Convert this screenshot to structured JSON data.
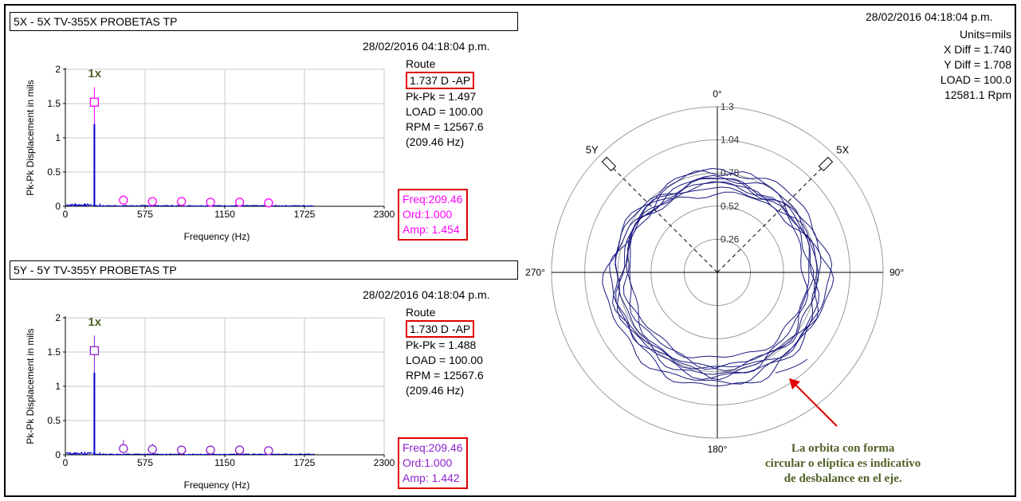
{
  "colors": {
    "spectrum_line": "#0000cc",
    "marker": "#ff00ff",
    "marker_dark": "#8c1fd0",
    "orbit": "#1a1a80",
    "annotation": "#4f6228",
    "highlight": "#e00000",
    "arrow": "#e00000"
  },
  "orbit": {
    "timestamp": "28/02/2016 04:18:04 p.m.",
    "info": [
      "Units=mils",
      "X Diff = 1.740",
      "Y Diff = 1.708",
      "LOAD = 100.0",
      "12581.1 Rpm"
    ],
    "angle_labels": {
      "top": "0°",
      "right": "90°",
      "bottom": "180°",
      "left": "270°"
    },
    "probe_labels": {
      "x": "5X",
      "y": "5Y"
    },
    "note": [
      "La orbita con forma",
      "circular o elíptica es indicativo",
      "de desbalance en el eje."
    ]
  },
  "chart_data": [
    {
      "type": "line",
      "title": "5X - 5X TV-355X PROBETAS TP",
      "timestamp": "28/02/2016 04:18:04 p.m.",
      "xlabel": "Frequency (Hz)",
      "ylabel": "Pk-Pk Displacement in mils",
      "xlim": [
        0,
        2300
      ],
      "ylim": [
        0,
        2
      ],
      "x_ticks": [
        "0",
        "575",
        "1150",
        "1725",
        "2300"
      ],
      "y_ticks": [
        "0",
        "0.5",
        "1",
        "1.5",
        "2"
      ],
      "grid": true,
      "peak_label": "1x",
      "peak": {
        "x": 209.46,
        "y": 1.2,
        "marker_y": 1.52
      },
      "harmonics": [
        {
          "x": 419,
          "y": 0.09,
          "whisker": 0.07
        },
        {
          "x": 628,
          "y": 0.07,
          "whisker": 0.06
        },
        {
          "x": 838,
          "y": 0.07,
          "whisker": 0.05
        },
        {
          "x": 1047,
          "y": 0.06,
          "whisker": 0.05
        },
        {
          "x": 1257,
          "y": 0.06,
          "whisker": 0.04
        },
        {
          "x": 1466,
          "y": 0.05,
          "whisker": 0.04
        }
      ],
      "info": {
        "route": "Route",
        "highlight": "1.737 D -AP",
        "lines": [
          "Pk-Pk = 1.497",
          "LOAD = 100.00",
          "RPM = 12567.6",
          "(209.46 Hz)"
        ]
      },
      "cursor": [
        "Freq:209.46",
        "Ord:1.000",
        "Amp: 1.454"
      ]
    },
    {
      "type": "line",
      "title": "5Y - 5Y TV-355Y PROBETAS TP",
      "timestamp": "28/02/2016 04:18:04 p.m.",
      "xlabel": "Frequency (Hz)",
      "ylabel": "Pk-Pk Displacement in mils",
      "xlim": [
        0,
        2300
      ],
      "ylim": [
        0,
        2
      ],
      "x_ticks": [
        "0",
        "575",
        "1150",
        "1725",
        "2300"
      ],
      "y_ticks": [
        "0",
        "0.5",
        "1",
        "1.5",
        "2"
      ],
      "grid": true,
      "peak_label": "1x",
      "peak": {
        "x": 209.46,
        "y": 1.2,
        "marker_y": 1.52
      },
      "harmonics": [
        {
          "x": 419,
          "y": 0.09,
          "whisker": 0.13
        },
        {
          "x": 628,
          "y": 0.08,
          "whisker": 0.08
        },
        {
          "x": 838,
          "y": 0.07,
          "whisker": 0.06
        },
        {
          "x": 1047,
          "y": 0.07,
          "whisker": 0.04
        },
        {
          "x": 1257,
          "y": 0.07,
          "whisker": 0.03
        },
        {
          "x": 1466,
          "y": 0.06,
          "whisker": 0.03
        }
      ],
      "info": {
        "route": "Route",
        "highlight": "1.730 D -AP",
        "lines": [
          "Pk-Pk = 1.488",
          "LOAD = 100.00",
          "RPM = 12567.6",
          "(209.46 Hz)"
        ]
      },
      "cursor": [
        "Freq:209.46",
        "Ord:1.000",
        "Amp: 1.442"
      ]
    },
    {
      "type": "scatter",
      "polar": true,
      "r_ticks": [
        "0.26",
        "0.52",
        "0.78",
        "1.04",
        "1.3"
      ],
      "rlim": [
        0,
        1.3
      ],
      "orbit_mean_radius": 0.83,
      "orbit_loops": 9
    }
  ]
}
